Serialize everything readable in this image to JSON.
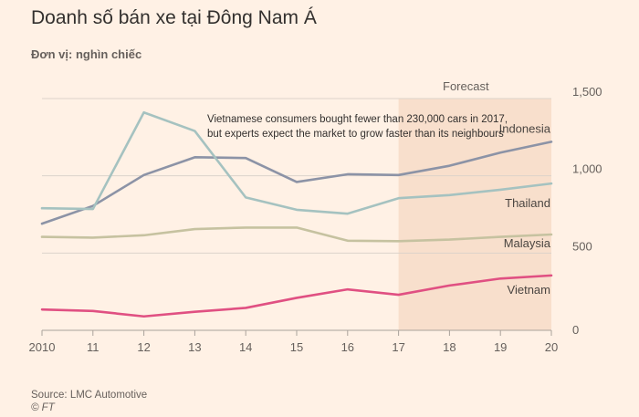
{
  "header": {
    "title": "Doanh số bán xe tại Đông Nam Á",
    "subtitle": "Đơn vị: nghìn chiếc"
  },
  "footer": {
    "source": "Source: LMC Automotive",
    "copyright": "© FT"
  },
  "colors": {
    "background": "#fff1e5",
    "forecast_band": "#f8dfcc",
    "grid": "#dcd3ca",
    "Indonesia": "#8c93a6",
    "Thailand": "#a5c2c0",
    "Malaysia": "#c6c2a0",
    "Vietnam": "#e05082"
  },
  "chart_data": {
    "type": "line",
    "x": [
      2010,
      2011,
      2012,
      2013,
      2014,
      2015,
      2016,
      2017,
      2018,
      2019,
      2020
    ],
    "x_tick_labels": [
      "2010",
      "11",
      "12",
      "13",
      "14",
      "15",
      "16",
      "17",
      "18",
      "19",
      "20"
    ],
    "y_ticks": [
      0,
      500,
      1000,
      1500
    ],
    "y_tick_labels": [
      "0",
      "500",
      "1,000",
      "1,500"
    ],
    "ylim": [
      0,
      1500
    ],
    "grid": true,
    "forecast": {
      "label": "Forecast",
      "from": 2017,
      "to": 2020
    },
    "annotation": [
      "Vietnamese consumers bought fewer than 230,000 cars in 2017,",
      "but experts expect the market to grow faster than its neighbours"
    ],
    "series": [
      {
        "name": "Indonesia",
        "values": [
          690,
          805,
          1005,
          1120,
          1115,
          960,
          1010,
          1005,
          1065,
          1150,
          1220
        ]
      },
      {
        "name": "Thailand",
        "values": [
          790,
          785,
          1410,
          1290,
          860,
          780,
          755,
          855,
          875,
          910,
          950
        ]
      },
      {
        "name": "Malaysia",
        "values": [
          605,
          600,
          615,
          655,
          665,
          665,
          580,
          577,
          587,
          605,
          620
        ]
      },
      {
        "name": "Vietnam",
        "values": [
          135,
          125,
          90,
          120,
          145,
          210,
          265,
          230,
          290,
          335,
          355
        ]
      }
    ]
  }
}
